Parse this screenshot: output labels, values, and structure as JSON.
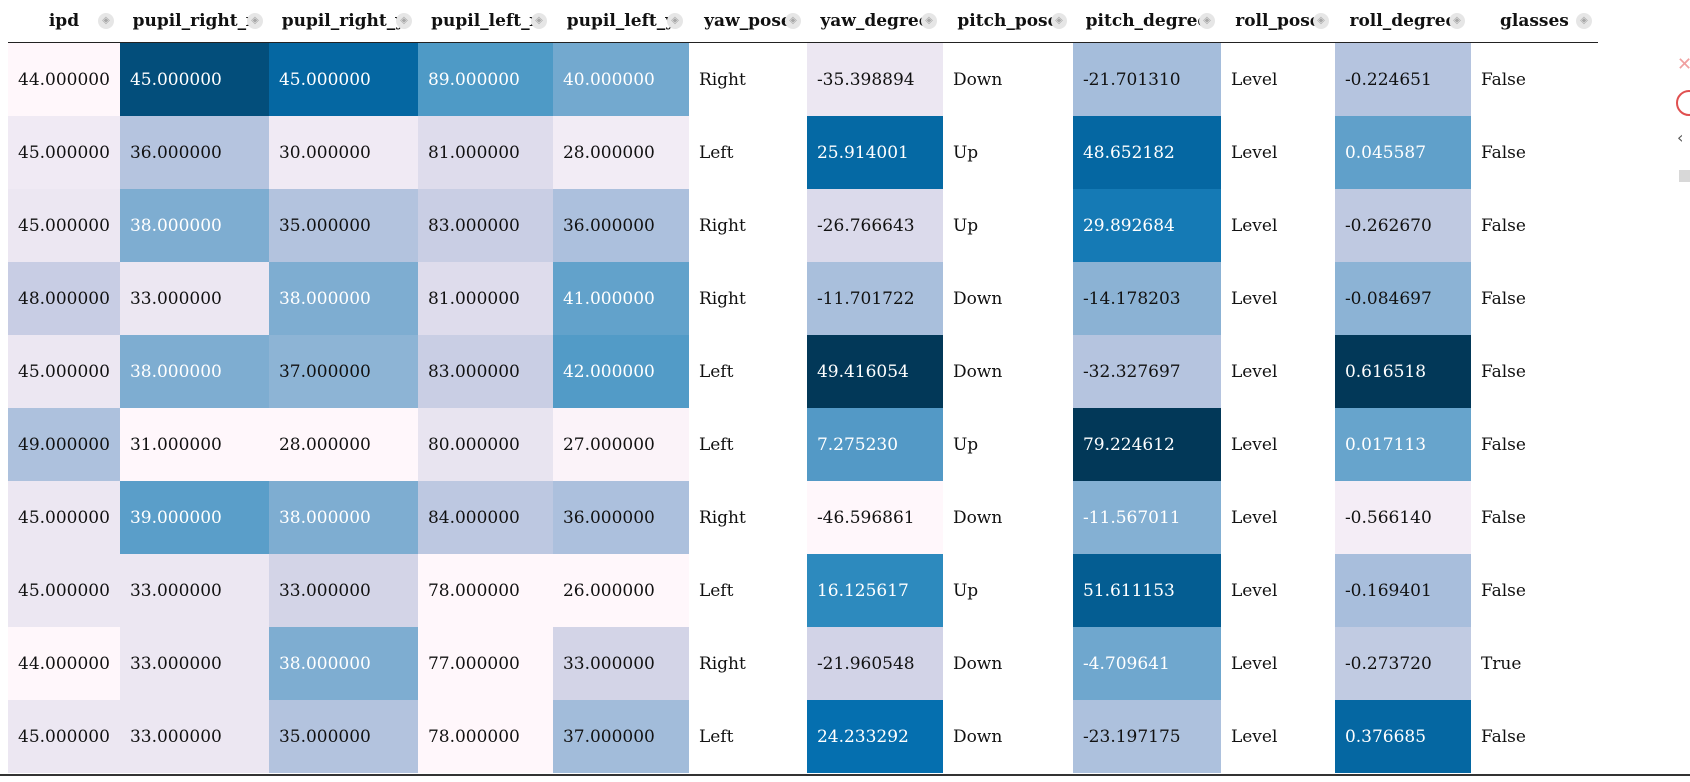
{
  "columns": [
    "ipd",
    "pupil_right_x",
    "pupil_right_y",
    "pupil_left_x",
    "pupil_left_y",
    "yaw_pose",
    "yaw_degree",
    "pitch_pose",
    "pitch_degree",
    "roll_pose",
    "roll_degree",
    "glasses"
  ],
  "rows": [
    [
      "44.000000",
      "45.000000",
      "45.000000",
      "89.000000",
      "40.000000",
      "Right",
      "-35.398894",
      "Down",
      "-21.701310",
      "Level",
      "-0.224651",
      "False"
    ],
    [
      "45.000000",
      "36.000000",
      "30.000000",
      "81.000000",
      "28.000000",
      "Left",
      "25.914001",
      "Up",
      "48.652182",
      "Level",
      "0.045587",
      "False"
    ],
    [
      "45.000000",
      "38.000000",
      "35.000000",
      "83.000000",
      "36.000000",
      "Right",
      "-26.766643",
      "Up",
      "29.892684",
      "Level",
      "-0.262670",
      "False"
    ],
    [
      "48.000000",
      "33.000000",
      "38.000000",
      "81.000000",
      "41.000000",
      "Right",
      "-11.701722",
      "Down",
      "-14.178203",
      "Level",
      "-0.084697",
      "False"
    ],
    [
      "45.000000",
      "38.000000",
      "37.000000",
      "83.000000",
      "42.000000",
      "Left",
      "49.416054",
      "Down",
      "-32.327697",
      "Level",
      "0.616518",
      "False"
    ],
    [
      "49.000000",
      "31.000000",
      "28.000000",
      "80.000000",
      "27.000000",
      "Left",
      "7.275230",
      "Up",
      "79.224612",
      "Level",
      "0.017113",
      "False"
    ],
    [
      "45.000000",
      "39.000000",
      "38.000000",
      "84.000000",
      "36.000000",
      "Right",
      "-46.596861",
      "Down",
      "-11.567011",
      "Level",
      "-0.566140",
      "False"
    ],
    [
      "45.000000",
      "33.000000",
      "33.000000",
      "78.000000",
      "26.000000",
      "Left",
      "16.125617",
      "Up",
      "51.611153",
      "Level",
      "-0.169401",
      "False"
    ],
    [
      "44.000000",
      "33.000000",
      "38.000000",
      "77.000000",
      "33.000000",
      "Right",
      "-21.960548",
      "Down",
      "-4.709641",
      "Level",
      "-0.273720",
      "True"
    ],
    [
      "45.000000",
      "33.000000",
      "35.000000",
      "78.000000",
      "37.000000",
      "Left",
      "24.233292",
      "Down",
      "-23.197175",
      "Level",
      "0.376685",
      "False"
    ]
  ],
  "cell_colors": [
    [
      "#fff7fb",
      "#034e7b",
      "#0567a2",
      "#4e9ac6",
      "#73a9cf",
      "#ffffff",
      "#ece7f2",
      "#ffffff",
      "#a5bddb",
      "#ffffff",
      "#b5c4df",
      "#ffffff"
    ],
    [
      "#f0eaf4",
      "#b5c4df",
      "#f0eaf4",
      "#dedcec",
      "#f2ecf5",
      "#ffffff",
      "#0569a4",
      "#ffffff",
      "#0567a2",
      "#ffffff",
      "#60a0ca",
      "#ffffff"
    ],
    [
      "#ece7f2",
      "#7eadd1",
      "#b3c3de",
      "#c9cee4",
      "#acc0dd",
      "#ffffff",
      "#dbdaeb",
      "#ffffff",
      "#157ab5",
      "#ffffff",
      "#bfc9e1",
      "#ffffff"
    ],
    [
      "#c8cde4",
      "#ece7f2",
      "#7eadd1",
      "#dedcec",
      "#62a2cb",
      "#ffffff",
      "#a9bfdc",
      "#ffffff",
      "#8bb2d4",
      "#ffffff",
      "#8cb3d5",
      "#ffffff"
    ],
    [
      "#ece7f2",
      "#7eadd1",
      "#8db4d5",
      "#c9cee4",
      "#529bc7",
      "#ffffff",
      "#023858",
      "#ffffff",
      "#b5c4df",
      "#ffffff",
      "#023858",
      "#ffffff"
    ],
    [
      "#adc1dd",
      "#fff7fb",
      "#fff7fb",
      "#e8e4f0",
      "#fbf3f9",
      "#ffffff",
      "#5399c6",
      "#ffffff",
      "#023858",
      "#ffffff",
      "#67a4cc",
      "#ffffff"
    ],
    [
      "#ece7f2",
      "#5a9ec9",
      "#7eadd1",
      "#bdc8e1",
      "#acc0dd",
      "#ffffff",
      "#fff7fb",
      "#ffffff",
      "#84b0d3",
      "#ffffff",
      "#f4edf6",
      "#ffffff"
    ],
    [
      "#ece7f2",
      "#ece7f2",
      "#d3d4e7",
      "#fff7fb",
      "#fff7fb",
      "#ffffff",
      "#2d8abe",
      "#ffffff",
      "#045d92",
      "#ffffff",
      "#a8bedc",
      "#ffffff"
    ],
    [
      "#fff7fb",
      "#ece7f2",
      "#7eadd1",
      "#fff7fb",
      "#d3d4e7",
      "#ffffff",
      "#d2d3e7",
      "#ffffff",
      "#6fa7ce",
      "#ffffff",
      "#c1cbe2",
      "#ffffff"
    ],
    [
      "#ece7f2",
      "#ece7f2",
      "#b3c3de",
      "#fff7fb",
      "#a2bcda",
      "#ffffff",
      "#056faf",
      "#ffffff",
      "#adc1dd",
      "#ffffff",
      "#0567a2",
      "#ffffff"
    ]
  ],
  "light_text_cells": [
    [
      1,
      2,
      3,
      4
    ],
    [
      6,
      8,
      10
    ],
    [
      1,
      8
    ],
    [
      2,
      4
    ],
    [
      1,
      4,
      6,
      10
    ],
    [
      6,
      8,
      10
    ],
    [
      1,
      2,
      8
    ],
    [
      6,
      8
    ],
    [
      2,
      8
    ],
    [
      6,
      10
    ]
  ],
  "sort_icon": "sort-icon"
}
